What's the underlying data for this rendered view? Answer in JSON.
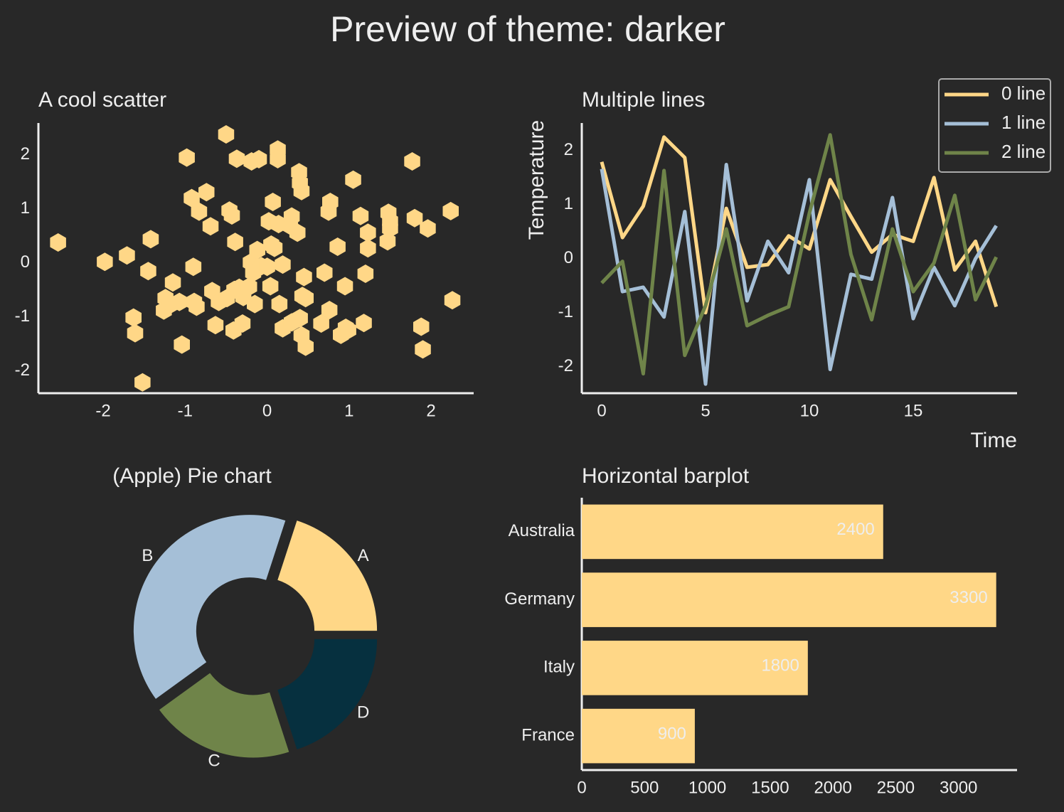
{
  "title": "Preview of theme: darker",
  "chart_data": [
    {
      "type": "scatter",
      "title": "A cool scatter",
      "color": "#ffd787",
      "marker": "hexagon",
      "x": [
        -2.55,
        -1.98,
        -1.71,
        -1.42,
        -1.45,
        -1.63,
        -1.61,
        -1.52,
        -1.04,
        -1.15,
        -1.24,
        -1.26,
        -1.17,
        -1.07,
        -0.9,
        -0.98,
        -0.92,
        -0.74,
        -0.83,
        -0.69,
        -0.89,
        -0.86,
        -0.67,
        -0.63,
        -0.59,
        -0.5,
        -0.46,
        -0.43,
        -0.39,
        -0.37,
        -0.41,
        -0.3,
        -0.34,
        -0.29,
        -0.4,
        -0.49,
        -0.22,
        -0.15,
        -0.19,
        -0.1,
        -0.2,
        -0.17,
        -0.12,
        -0.07,
        0.04,
        0.07,
        0.02,
        0.05,
        0.09,
        0.0,
        0.13,
        0.13,
        0.14,
        0.19,
        0.15,
        0.19,
        0.3,
        0.28,
        0.37,
        0.39,
        0.42,
        0.4,
        0.45,
        0.43,
        0.47,
        0.4,
        0.42,
        0.47,
        0.3,
        0.7,
        0.66,
        0.76,
        0.75,
        0.77,
        0.86,
        0.95,
        1.05,
        0.96,
        0.9,
        0.99,
        1.18,
        1.14,
        1.23,
        1.23,
        1.2,
        1.48,
        1.5,
        1.47,
        1.5,
        1.77,
        1.8,
        1.96,
        1.88,
        1.9,
        2.24,
        2.26
      ],
      "values": [
        0.38,
        0.02,
        0.14,
        0.44,
        -0.15,
        -1.01,
        -1.3,
        -2.21,
        -1.51,
        -0.36,
        -0.65,
        -0.88,
        -0.76,
        -0.72,
        -0.07,
        1.95,
        1.2,
        1.31,
        0.95,
        0.68,
        -0.72,
        -0.81,
        -0.52,
        -1.15,
        -0.72,
        2.38,
        0.97,
        0.88,
        0.39,
        1.93,
        -1.25,
        -1.12,
        -0.46,
        -0.63,
        -0.5,
        -0.65,
        -0.44,
        -0.76,
        1.88,
        1.92,
        0.01,
        -0.18,
        0.24,
        -0.06,
        -0.43,
        1.13,
        0.77,
        0.34,
        0.28,
        -0.07,
        2.1,
        1.92,
        0.72,
        -0.03,
        -0.76,
        -1.21,
        -1.1,
        0.69,
        0.56,
        1.68,
        1.33,
        1.48,
        -0.26,
        -0.61,
        -0.65,
        -1.02,
        -1.34,
        -1.55,
        0.86,
        -0.18,
        -1.12,
        -0.87,
        0.95,
        1.13,
        0.3,
        -0.43,
        1.54,
        -1.2,
        -1.33,
        -1.24,
        -1.11,
        0.87,
        0.56,
        0.27,
        -0.2,
        0.93,
        0.64,
        0.4,
        0.77,
        1.88,
        0.83,
        0.64,
        -1.18,
        -1.6,
        0.96,
        -0.69
      ],
      "xlim": [
        -2.79,
        2.52
      ],
      "ylim": [
        -2.41,
        2.59
      ],
      "xticks": [
        -2,
        -1,
        0,
        1,
        2
      ],
      "yticks": [
        -2,
        -1,
        0,
        1,
        2
      ]
    },
    {
      "type": "line",
      "title": "Multiple lines",
      "x_label": "Time",
      "y_label": "Temperature",
      "legend": "upper right",
      "x": [
        0,
        1,
        2,
        3,
        4,
        5,
        6,
        7,
        8,
        9,
        10,
        11,
        12,
        13,
        14,
        15,
        16,
        17,
        18,
        19
      ],
      "series": [
        {
          "name": "0 line",
          "color": "#ffd787",
          "values": [
            1.79,
            0.39,
            0.97,
            2.25,
            1.87,
            -1.0,
            0.93,
            -0.16,
            -0.11,
            0.42,
            0.18,
            1.46,
            0.78,
            0.12,
            0.45,
            0.32,
            1.5,
            -0.21,
            0.32,
            -0.89
          ]
        },
        {
          "name": "1 line",
          "color": "#a5bfd7",
          "values": [
            1.66,
            -0.61,
            -0.53,
            -1.08,
            0.87,
            -2.32,
            1.74,
            -0.78,
            0.32,
            -0.26,
            1.46,
            -2.05,
            -0.29,
            -0.38,
            1.13,
            -1.11,
            -0.16,
            -0.87,
            0.0,
            0.61
          ]
        },
        {
          "name": "2 line",
          "color": "#6f8449",
          "values": [
            -0.45,
            -0.05,
            -2.13,
            1.63,
            -1.79,
            -0.87,
            0.55,
            -1.24,
            -1.05,
            -0.89,
            0.84,
            2.29,
            0.08,
            -1.13,
            0.55,
            -0.61,
            -0.08,
            1.17,
            -0.76,
            0.03
          ]
        }
      ],
      "xlim": [
        -0.96,
        20.0
      ],
      "ylim": [
        -2.49,
        2.51
      ],
      "xticks": [
        0,
        5,
        10,
        15
      ],
      "yticks": [
        -2,
        -1,
        0,
        1,
        2
      ]
    },
    {
      "type": "pie",
      "title": "(Apple) Pie chart",
      "categories": [
        "A",
        "B",
        "C",
        "D"
      ],
      "values": [
        20,
        40,
        20,
        20
      ],
      "colors": [
        "#ffd787",
        "#a5bfd7",
        "#6f8449",
        "#06303f"
      ]
    },
    {
      "type": "bar",
      "orientation": "horizontal",
      "title": "Horizontal barplot",
      "color": "#ffd787",
      "categories": [
        "France",
        "Italy",
        "Germany",
        "Australia"
      ],
      "values": [
        900,
        1800,
        3300,
        2400
      ],
      "xlim": [
        0,
        3466
      ],
      "xticks": [
        0,
        500,
        1000,
        1500,
        2000,
        2500,
        3000
      ]
    }
  ]
}
